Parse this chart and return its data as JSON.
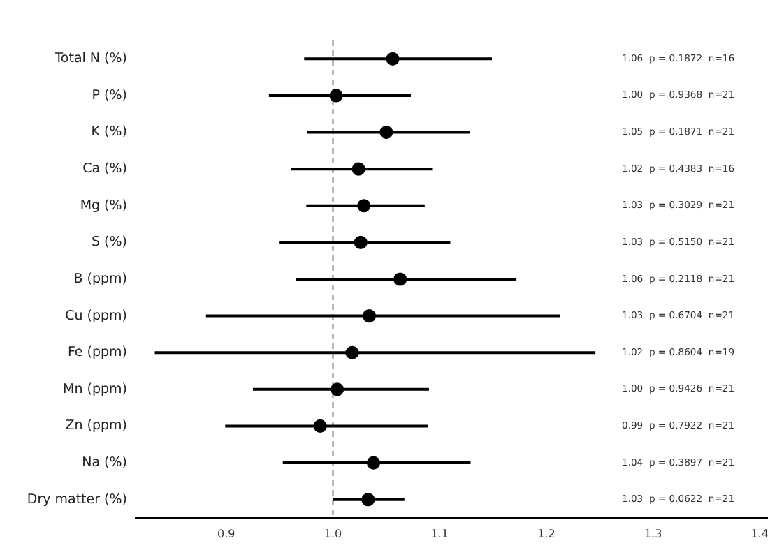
{
  "chart_data": {
    "type": "scatter",
    "orientation": "horizontal",
    "color": "#000000",
    "marker": "circle",
    "grid": false,
    "categories": [
      "Total N (%)",
      "P (%)",
      "K (%)",
      "Ca (%)",
      "Mg (%)",
      "S (%)",
      "B (ppm)",
      "Cu (ppm)",
      "Fe (ppm)",
      "Mn (ppm)",
      "Zn (ppm)",
      "Na (%)",
      "Dry matter (%)"
    ],
    "values": [
      1.056,
      1.003,
      1.05,
      1.024,
      1.029,
      1.026,
      1.063,
      1.034,
      1.018,
      1.004,
      0.988,
      1.038,
      1.033
    ],
    "errors": [
      [
        0.973,
        1.149
      ],
      [
        0.94,
        1.073
      ],
      [
        0.976,
        1.128
      ],
      [
        0.961,
        1.093
      ],
      [
        0.975,
        1.086
      ],
      [
        0.95,
        1.11
      ],
      [
        0.965,
        1.172
      ],
      [
        0.881,
        1.213
      ],
      [
        0.833,
        1.246
      ],
      [
        0.925,
        1.09
      ],
      [
        0.899,
        1.089
      ],
      [
        0.953,
        1.129
      ],
      [
        1.0,
        1.067
      ]
    ],
    "annotations": [
      "1.06  p = 0.1872  n=16",
      "1.00  p = 0.9368  n=21",
      "1.05  p = 0.1871  n=21",
      "1.02  p = 0.4383  n=16",
      "1.03  p = 0.3029  n=21",
      "1.03  p = 0.5150  n=21",
      "1.06  p = 0.2118  n=21",
      "1.03  p = 0.6704  n=21",
      "1.02  p = 0.8604  n=19",
      "1.00  p = 0.9426  n=21",
      "0.99  p = 0.7922  n=21",
      "1.04  p = 0.3897  n=21",
      "1.03  p = 0.0622  n=21"
    ],
    "xlim": [
      0.815,
      1.407
    ],
    "xticks": [
      {
        "value": 0.9,
        "label": "0.9"
      },
      {
        "value": 1,
        "label": "1.0"
      },
      {
        "value": 1.1,
        "label": "1.1"
      },
      {
        "value": 1.2,
        "label": "1.2"
      },
      {
        "value": 1.3,
        "label": "1.3"
      },
      {
        "value": 1.4,
        "label": "1.4"
      }
    ],
    "ref_lines": [
      {
        "axis": "x",
        "value": 1,
        "color": "#999999",
        "line_style": "dashed"
      }
    ]
  }
}
